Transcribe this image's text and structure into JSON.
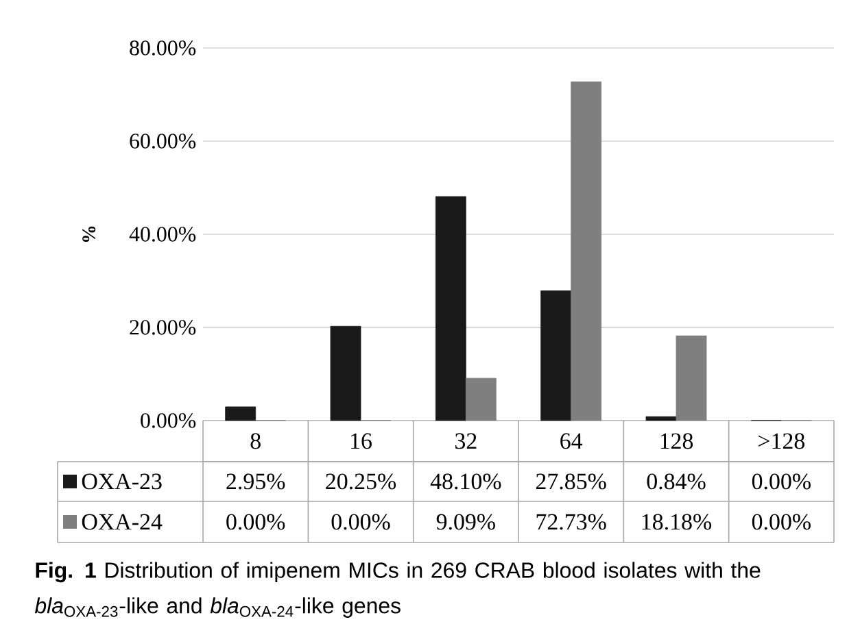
{
  "chart_data": {
    "type": "bar",
    "ylabel": "**%**",
    "categories": [
      "8",
      "16",
      "32",
      "64",
      "128",
      ">128"
    ],
    "series": [
      {
        "name": "OXA-23",
        "color": "#1a1a1a",
        "values": [
          2.95,
          20.25,
          48.1,
          27.85,
          0.84,
          0.0
        ],
        "value_labels": [
          "2.95%",
          "20.25%",
          "48.10%",
          "27.85%",
          "0.84%",
          "0.00%"
        ]
      },
      {
        "name": "OXA-24",
        "color": "#7f7f7f",
        "values": [
          0.0,
          0.0,
          9.09,
          72.73,
          18.18,
          0.0
        ],
        "value_labels": [
          "0.00%",
          "0.00%",
          "9.09%",
          "72.73%",
          "18.18%",
          "0.00%"
        ]
      }
    ],
    "ylim": [
      0,
      80
    ],
    "yticks": [
      {
        "value": 0,
        "label": "0.00%"
      },
      {
        "value": 20,
        "label": "20.00%"
      },
      {
        "value": 40,
        "label": "40.00%"
      },
      {
        "value": 60,
        "label": "60.00%"
      },
      {
        "value": 80,
        "label": "80.00%"
      }
    ],
    "grid": "y",
    "legend": "bottom left",
    "annotations": [
      "**Fig. 1** Distribution of imipenem MICs in 269 CRAB blood isolates with the *bla*$_{OXA-23}$-like and *bla*$_{OXA-24}$-like genes"
    ]
  }
}
